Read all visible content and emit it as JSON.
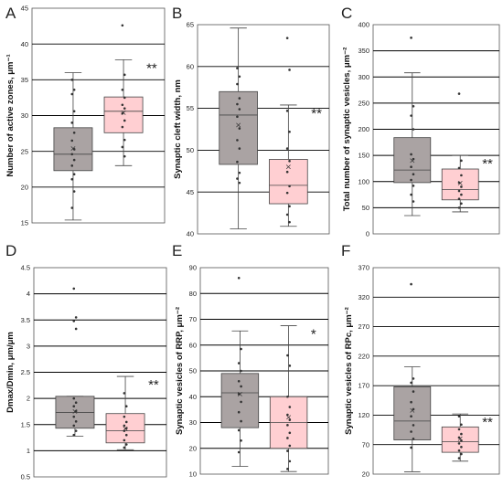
{
  "colors": {
    "control_box": "#aaa3a3",
    "treated_box": "#ffcfd2",
    "grid": "#000000",
    "text": "#222222"
  },
  "chart_data": [
    {
      "type": "box",
      "panel": "A",
      "ylabel": "Number of active zones, μm⁻¹",
      "ylim": [
        15,
        45
      ],
      "yticks": [
        "15",
        "20",
        "25",
        "30",
        "35",
        "40",
        "45"
      ],
      "grid": true,
      "significance": "**",
      "groups": [
        {
          "color": "#aaa3a3",
          "min": 15.4,
          "q1": 22.3,
          "median": 24.6,
          "q3": 28.3,
          "max": 36.0,
          "mean": 25.4,
          "points": [
            17.1,
            19.4,
            21.1,
            21.8,
            23.0,
            23.8,
            24.6,
            25.3,
            26.5,
            27.6,
            29.0,
            30.6,
            33.0,
            33.6,
            35.0
          ]
        },
        {
          "color": "#ffcfd2",
          "min": 23.0,
          "q1": 27.6,
          "median": 30.6,
          "q3": 32.6,
          "max": 37.8,
          "mean": 30.4,
          "points": [
            42.6,
            35.7,
            33.6,
            32.5,
            31.5,
            31.0,
            30.3,
            29.3,
            28.4,
            26.6,
            25.6,
            24.3
          ]
        }
      ]
    },
    {
      "type": "box",
      "panel": "B",
      "ylabel": "Synaptic cleft width, nm",
      "ylim": [
        40,
        65
      ],
      "yticks": [
        "40",
        "45",
        "50",
        "55",
        "60",
        "65"
      ],
      "grid": true,
      "significance": "**",
      "groups": [
        {
          "color": "#aaa3a3",
          "min": 40.6,
          "q1": 48.3,
          "median": 54.2,
          "q3": 57.0,
          "max": 64.6,
          "mean": 53.0,
          "points": [
            59.8,
            58.8,
            57.9,
            56.2,
            55.5,
            54.9,
            54.0,
            52.6,
            51.2,
            50.2,
            48.6,
            47.3,
            46.6,
            46.1
          ]
        },
        {
          "color": "#ffcfd2",
          "min": 40.9,
          "q1": 43.6,
          "median": 45.8,
          "q3": 48.9,
          "max": 55.4,
          "mean": 48.0,
          "points": [
            63.4,
            59.6,
            54.7,
            52.2,
            50.2,
            48.7,
            47.4,
            45.7,
            44.9,
            43.3,
            42.3,
            41.4
          ]
        }
      ]
    },
    {
      "type": "box",
      "panel": "C",
      "ylabel": "Total number of synaptic vesicles, μm⁻²",
      "ylim": [
        0,
        400
      ],
      "yticks": [
        "0",
        "50",
        "100",
        "150",
        "200",
        "250",
        "300",
        "350",
        "400"
      ],
      "grid": true,
      "significance": "**",
      "groups": [
        {
          "color": "#aaa3a3",
          "min": 35,
          "q1": 98,
          "median": 122,
          "q3": 184,
          "max": 308,
          "mean": 140,
          "points": [
            375,
            244,
            226,
            200,
            152,
            143,
            128,
            114,
            103,
            92,
            75,
            62
          ]
        },
        {
          "color": "#ffcfd2",
          "min": 42,
          "q1": 65,
          "median": 85,
          "q3": 124,
          "max": 150,
          "mean": 97,
          "points": [
            268,
            140,
            126,
            112,
            98,
            90,
            82,
            75,
            67,
            58,
            50
          ]
        }
      ]
    },
    {
      "type": "box",
      "panel": "D",
      "ylabel": "Dmax/Dmin, μm/μm",
      "ylim": [
        0.5,
        4.5
      ],
      "yticks": [
        "0.5",
        "1",
        "1.5",
        "2",
        "2.5",
        "3",
        "3.5",
        "4",
        "4.5"
      ],
      "grid": true,
      "significance": "**",
      "groups": [
        {
          "color": "#aaa3a3",
          "min": 1.28,
          "q1": 1.43,
          "median": 1.73,
          "q3": 2.04,
          "max": 2.04,
          "mean": 1.75,
          "points": [
            4.1,
            3.55,
            3.48,
            3.33,
            2.0,
            1.92,
            1.85,
            1.76,
            1.65,
            1.56,
            1.48,
            1.38,
            1.3
          ]
        },
        {
          "color": "#ffcfd2",
          "min": 1.02,
          "q1": 1.15,
          "median": 1.38,
          "q3": 1.71,
          "max": 2.42,
          "mean": 1.42,
          "points": [
            2.1,
            1.85,
            1.65,
            1.55,
            1.48,
            1.43,
            1.38,
            1.3,
            1.2,
            1.12,
            1.06
          ]
        }
      ]
    },
    {
      "type": "box",
      "panel": "E",
      "ylabel": "Synaptic vesicles of RRP, μm⁻²",
      "ylim": [
        10,
        90
      ],
      "yticks": [
        "10",
        "20",
        "30",
        "40",
        "50",
        "60",
        "70",
        "80",
        "90"
      ],
      "grid": true,
      "significance": "*",
      "groups": [
        {
          "color": "#aaa3a3",
          "min": 13,
          "q1": 28,
          "median": 41.5,
          "q3": 49,
          "max": 65.5,
          "mean": 41,
          "points": [
            86,
            58.5,
            53,
            50,
            46,
            44,
            41,
            38,
            34,
            30.5,
            27,
            23,
            18.5
          ]
        },
        {
          "color": "#ffcfd2",
          "min": 11,
          "q1": 20,
          "median": 30,
          "q3": 40,
          "max": 67.5,
          "mean": 32,
          "points": [
            56,
            52,
            40,
            36,
            33,
            31,
            29,
            26,
            24,
            21,
            19,
            15,
            12
          ]
        }
      ]
    },
    {
      "type": "box",
      "panel": "F",
      "ylabel": "Synaptic vesicles of RPc, μm⁻²",
      "ylim": [
        20,
        370
      ],
      "yticks": [
        "20",
        "70",
        "120",
        "170",
        "220",
        "270",
        "320",
        "370"
      ],
      "grid": true,
      "significance": "**",
      "groups": [
        {
          "color": "#aaa3a3",
          "min": 24,
          "q1": 78,
          "median": 110,
          "q3": 168,
          "max": 202,
          "mean": 128,
          "points": [
            342,
            182,
            175,
            160,
            142,
            130,
            118,
            103,
            92,
            80,
            65
          ]
        },
        {
          "color": "#ffcfd2",
          "min": 42,
          "q1": 57,
          "median": 75,
          "q3": 100,
          "max": 122,
          "mean": 80,
          "points": [
            118,
            104,
            96,
            88,
            82,
            77,
            72,
            66,
            60,
            54,
            47
          ]
        }
      ]
    }
  ]
}
